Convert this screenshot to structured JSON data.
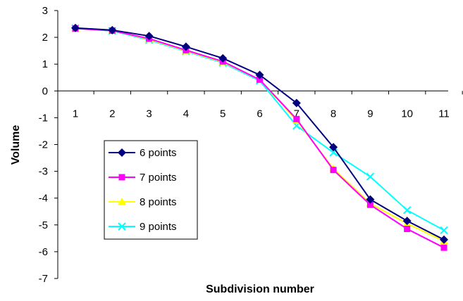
{
  "chart_data": {
    "type": "line",
    "title": "",
    "xlabel": "Subdivision number",
    "ylabel": "Volume",
    "x": [
      1,
      2,
      3,
      4,
      5,
      6,
      7,
      8,
      9,
      10,
      11
    ],
    "ylim": [
      -7,
      3
    ],
    "yticks": [
      3,
      2,
      1,
      0,
      -1,
      -2,
      -3,
      -4,
      -5,
      -6,
      -7
    ],
    "grid": false,
    "legend_position": "lower-left",
    "series": [
      {
        "name": "6 points",
        "color": "#000080",
        "marker": "diamond",
        "values": [
          2.35,
          2.27,
          2.05,
          1.65,
          1.22,
          0.6,
          -0.45,
          -2.1,
          -4.05,
          -4.85,
          -5.55
        ]
      },
      {
        "name": "7 points",
        "color": "#FF00FF",
        "marker": "square",
        "values": [
          2.33,
          2.25,
          1.95,
          1.52,
          1.1,
          0.42,
          -1.05,
          -2.95,
          -4.25,
          -5.15,
          -5.85
        ]
      },
      {
        "name": "8 points",
        "color": "#FFFF00",
        "marker": "triangle",
        "values": [
          2.33,
          2.25,
          1.93,
          1.5,
          1.08,
          0.42,
          -1.1,
          -2.9,
          -4.2,
          -4.95,
          -5.6
        ]
      },
      {
        "name": "9 points",
        "color": "#00FFFF",
        "marker": "x",
        "values": [
          2.34,
          2.24,
          1.9,
          1.48,
          1.05,
          0.38,
          -1.3,
          -2.3,
          -3.2,
          -4.45,
          -5.2
        ]
      }
    ]
  }
}
